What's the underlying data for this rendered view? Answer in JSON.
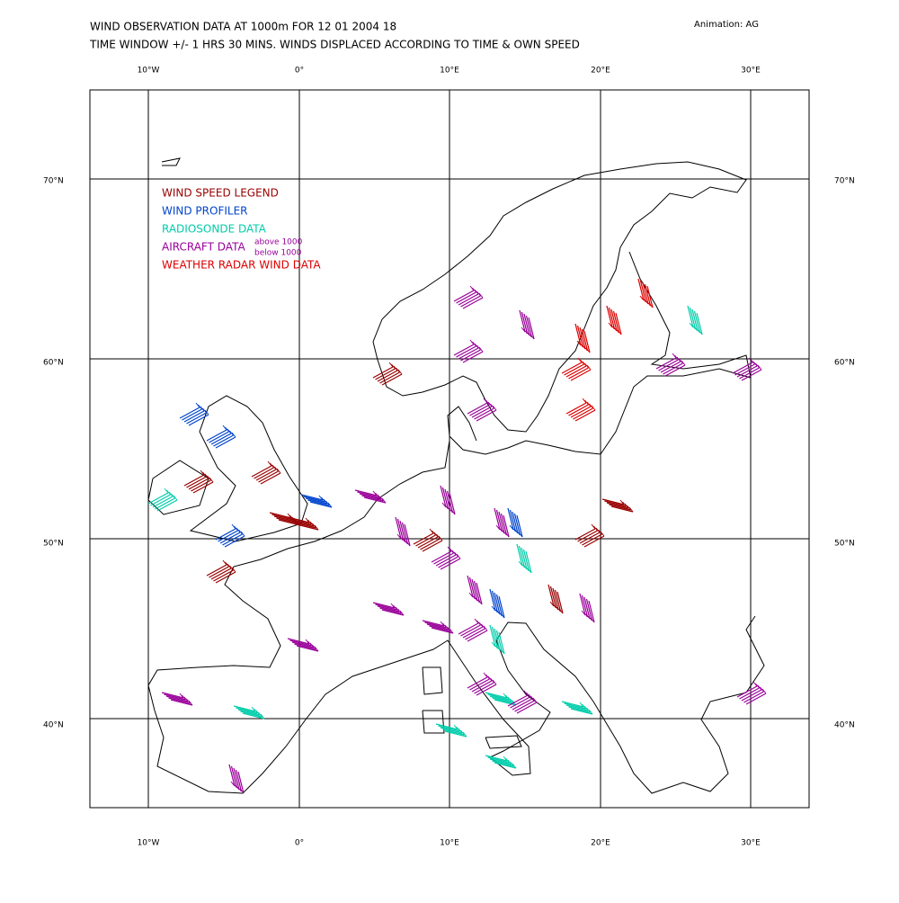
{
  "header": {
    "title": "WIND OBSERVATION DATA AT 1000m FOR 12 01 2004 18",
    "subtitle": "TIME WINDOW +/- 1 HRS 30 MINS. WINDS DISPLACED ACCORDING TO TIME & OWN SPEED",
    "credit": "Animation: AG"
  },
  "map": {
    "longitude_labels": [
      "10°W",
      "0°",
      "10°E",
      "20°E",
      "30°E"
    ],
    "latitude_labels": [
      "70°N",
      "60°N",
      "50°N",
      "40°N"
    ]
  },
  "legend": {
    "entries": [
      {
        "label": "WIND SPEED LEGEND",
        "color": "#990000"
      },
      {
        "label": "WIND PROFILER",
        "color": "#0044cc"
      },
      {
        "label": "RADIOSONDE DATA",
        "color": "#00ccaa"
      },
      {
        "label": "AIRCRAFT DATA",
        "color": "#990099"
      },
      {
        "label": "WEATHER RADAR WIND DATA",
        "color": "#dd0000"
      }
    ],
    "aircraft_above": "above 1000",
    "aircraft_below": "below 1000"
  }
}
